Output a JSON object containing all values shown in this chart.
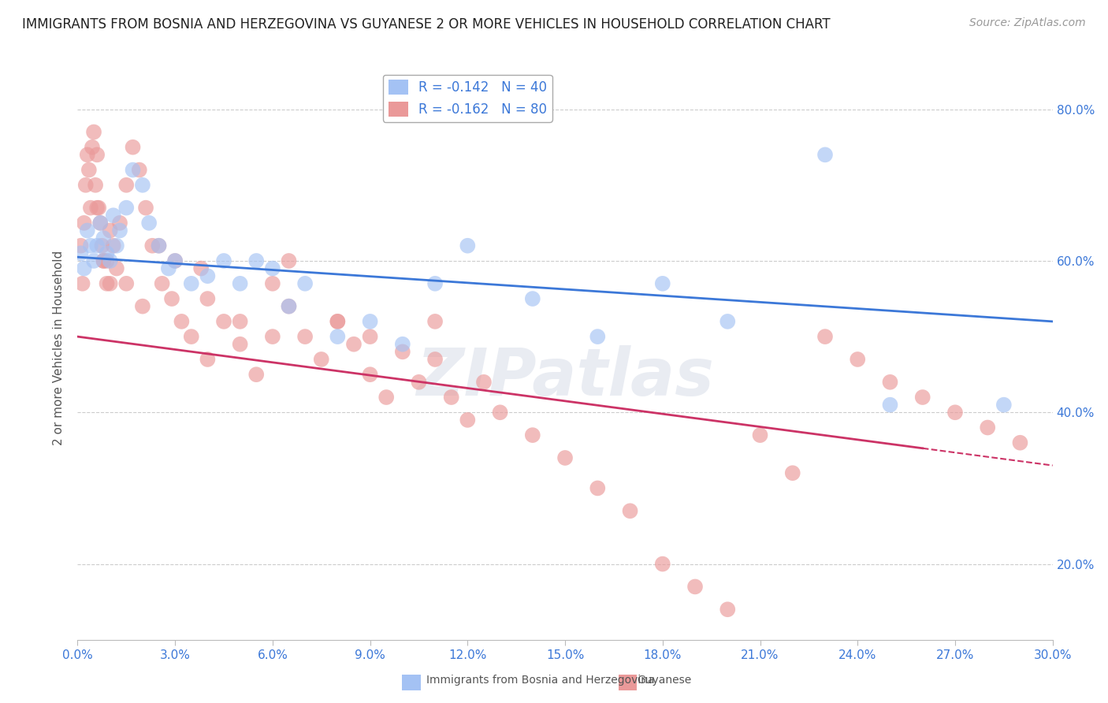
{
  "title": "IMMIGRANTS FROM BOSNIA AND HERZEGOVINA VS GUYANESE 2 OR MORE VEHICLES IN HOUSEHOLD CORRELATION CHART",
  "source": "Source: ZipAtlas.com",
  "ylabel": "2 or more Vehicles in Household",
  "xlim": [
    0.0,
    30.0
  ],
  "ylim": [
    10.0,
    87.0
  ],
  "yticks": [
    20.0,
    40.0,
    60.0,
    80.0
  ],
  "xticks": [
    0.0,
    3.0,
    6.0,
    9.0,
    12.0,
    15.0,
    18.0,
    21.0,
    24.0,
    27.0,
    30.0
  ],
  "legend": {
    "blue_r": "R = -0.142",
    "blue_n": "N = 40",
    "pink_r": "R = -0.162",
    "pink_n": "N = 80"
  },
  "blue_color": "#a4c2f4",
  "pink_color": "#ea9999",
  "blue_line_color": "#3c78d8",
  "pink_line_color": "#cc3366",
  "watermark": "ZIPatlas",
  "watermark_color": "#c8d0e0",
  "blue_scatter": {
    "x": [
      0.1,
      0.2,
      0.3,
      0.4,
      0.5,
      0.6,
      0.7,
      0.8,
      0.9,
      1.0,
      1.1,
      1.2,
      1.3,
      1.5,
      1.7,
      2.0,
      2.2,
      2.5,
      2.8,
      3.0,
      3.5,
      4.0,
      4.5,
      5.0,
      5.5,
      6.0,
      6.5,
      7.0,
      8.0,
      9.0,
      10.0,
      11.0,
      12.0,
      14.0,
      16.0,
      18.0,
      20.0,
      23.0,
      25.0,
      28.5
    ],
    "y": [
      61,
      59,
      64,
      62,
      60,
      62,
      65,
      63,
      61,
      60,
      66,
      62,
      64,
      67,
      72,
      70,
      65,
      62,
      59,
      60,
      57,
      58,
      60,
      57,
      60,
      59,
      54,
      57,
      50,
      52,
      49,
      57,
      62,
      55,
      50,
      57,
      52,
      74,
      41,
      41
    ]
  },
  "pink_scatter": {
    "x": [
      0.1,
      0.15,
      0.2,
      0.25,
      0.3,
      0.35,
      0.4,
      0.45,
      0.5,
      0.55,
      0.6,
      0.65,
      0.7,
      0.75,
      0.8,
      0.9,
      1.0,
      1.1,
      1.2,
      1.3,
      1.5,
      1.7,
      1.9,
      2.1,
      2.3,
      2.6,
      2.9,
      3.2,
      3.5,
      4.0,
      4.5,
      5.0,
      5.5,
      6.0,
      6.5,
      7.0,
      7.5,
      8.0,
      8.5,
      9.0,
      9.5,
      10.0,
      10.5,
      11.0,
      11.5,
      12.0,
      12.5,
      13.0,
      14.0,
      15.0,
      16.0,
      17.0,
      18.0,
      19.0,
      20.0,
      21.0,
      22.0,
      23.0,
      24.0,
      25.0,
      26.0,
      27.0,
      28.0,
      29.0,
      6.0,
      8.0,
      3.0,
      1.5,
      2.0,
      0.8,
      1.0,
      4.0,
      5.0,
      0.6,
      0.9,
      2.5,
      3.8,
      6.5,
      9.0,
      11.0
    ],
    "y": [
      62,
      57,
      65,
      70,
      74,
      72,
      67,
      75,
      77,
      70,
      74,
      67,
      65,
      62,
      60,
      57,
      64,
      62,
      59,
      65,
      70,
      75,
      72,
      67,
      62,
      57,
      55,
      52,
      50,
      47,
      52,
      49,
      45,
      57,
      54,
      50,
      47,
      52,
      49,
      45,
      42,
      48,
      44,
      47,
      42,
      39,
      44,
      40,
      37,
      34,
      30,
      27,
      20,
      17,
      14,
      37,
      32,
      50,
      47,
      44,
      42,
      40,
      38,
      36,
      50,
      52,
      60,
      57,
      54,
      60,
      57,
      55,
      52,
      67,
      60,
      62,
      59,
      60,
      50,
      52
    ]
  },
  "blue_line": {
    "x0": 0.0,
    "y0": 60.5,
    "x1": 30.0,
    "y1": 52.0
  },
  "pink_line": {
    "x0": 0.0,
    "y0": 50.0,
    "x1": 30.0,
    "y1": 33.0
  },
  "title_fontsize": 12,
  "axis_label_fontsize": 11,
  "tick_fontsize": 11,
  "legend_fontsize": 12,
  "source_fontsize": 10
}
